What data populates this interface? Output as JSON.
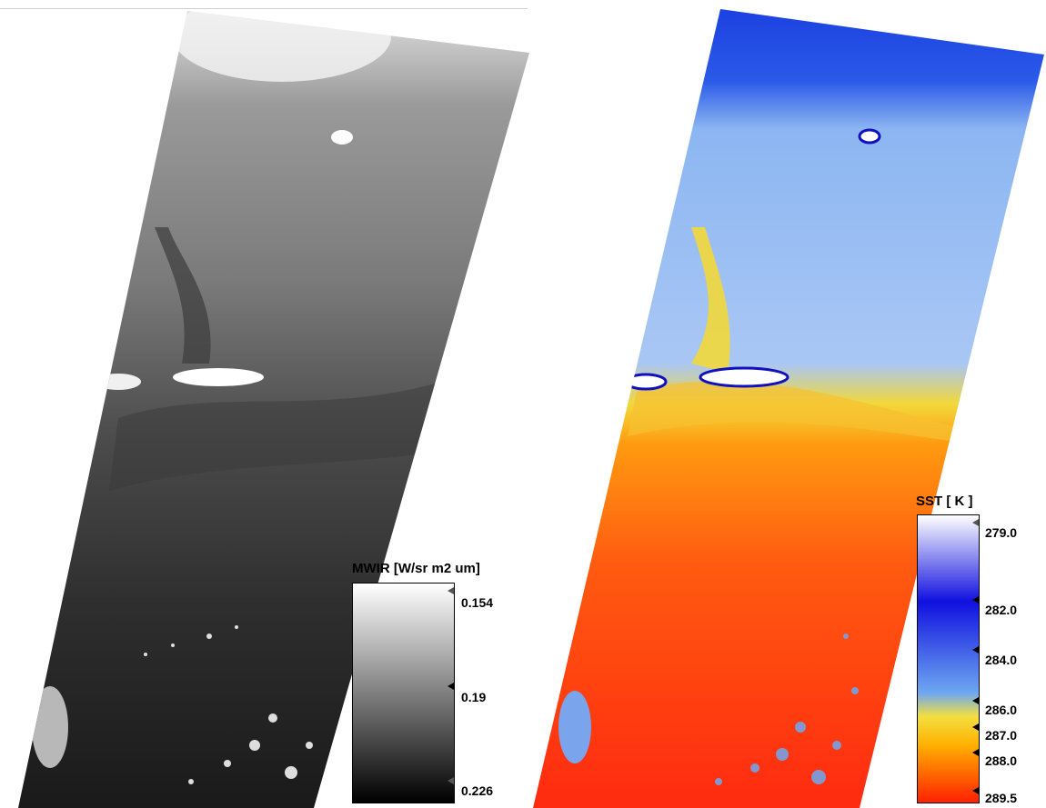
{
  "left_panel": {
    "colorbar": {
      "title": "MWIR [W/sr m2 um]",
      "ticks": [
        {
          "label": "0.154",
          "fraction": 0.0
        },
        {
          "label": "0.19",
          "fraction": 0.5
        },
        {
          "label": "0.226",
          "fraction": 1.0
        }
      ],
      "gradient": [
        "#ffffff",
        "#000000"
      ]
    }
  },
  "right_panel": {
    "colorbar": {
      "title": "SST [ K ]",
      "ticks": [
        {
          "label": "279.0",
          "fraction": 0.0
        },
        {
          "label": "282.0",
          "fraction": 0.3
        },
        {
          "label": "284.0",
          "fraction": 0.5
        },
        {
          "label": "286.0",
          "fraction": 0.7
        },
        {
          "label": "287.0",
          "fraction": 0.8
        },
        {
          "label": "288.0",
          "fraction": 0.9
        },
        {
          "label": "289.5",
          "fraction": 1.0
        }
      ],
      "gradient": [
        "#ffffff",
        "#1010e0",
        "#6fa8f0",
        "#f2e040",
        "#ffb000",
        "#ff2000"
      ]
    }
  }
}
